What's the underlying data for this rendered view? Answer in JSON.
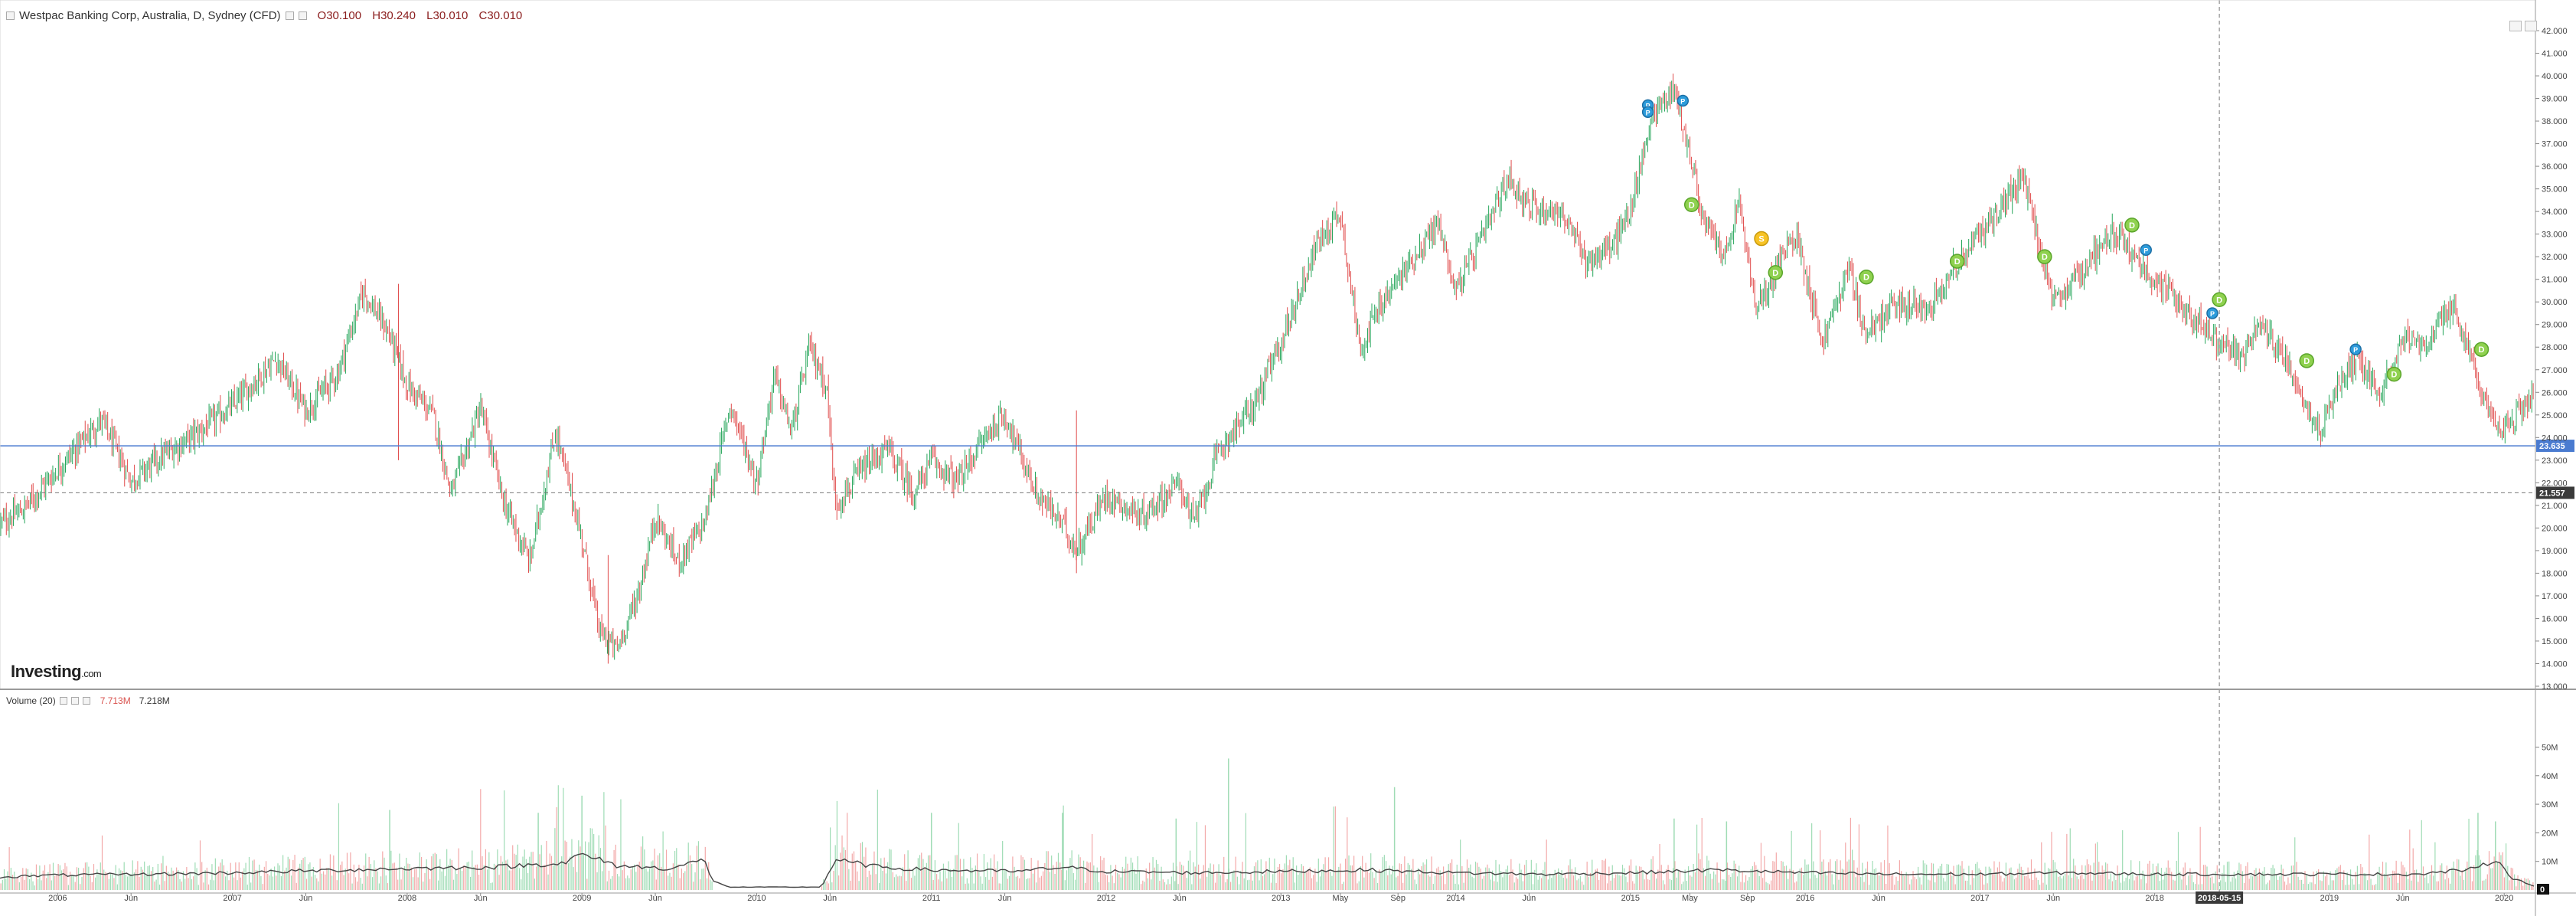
{
  "header": {
    "title": "Westpac Banking Corp, Australia, D, Sydney (CFD)",
    "open": "O30.100",
    "high": "H30.240",
    "low": "L30.010",
    "close": "C30.010"
  },
  "volume_header": {
    "label": "Volume (20)",
    "value1": "7.713M",
    "value2": "7.218M"
  },
  "logo": {
    "main": "Investing",
    "suffix": ".com"
  },
  "colors": {
    "up": "#26a65b",
    "down": "#e04b4b",
    "volume_up": "#9fdcb5",
    "volume_down": "#f3a9a9",
    "ma": "#444444",
    "price_line": "#4a7bd0",
    "crosshair_label": "#3a3a3a"
  },
  "chart_data": [
    {
      "type": "candlestick",
      "ylim": [
        13.0,
        42.0
      ],
      "yticks": [
        "13.000",
        "14.000",
        "15.000",
        "16.000",
        "17.000",
        "18.000",
        "19.000",
        "20.000",
        "21.000",
        "22.000",
        "23.000",
        "24.000",
        "25.000",
        "26.000",
        "27.000",
        "28.000",
        "29.000",
        "30.000",
        "31.000",
        "32.000",
        "33.000",
        "34.000",
        "35.000",
        "36.000",
        "37.000",
        "38.000",
        "39.000",
        "40.000",
        "41.000",
        "42.000"
      ],
      "xticks": [
        {
          "label": "2006",
          "t": 2006.0
        },
        {
          "label": "Jun",
          "t": 2006.42
        },
        {
          "label": "2007",
          "t": 2007.0
        },
        {
          "label": "Jun",
          "t": 2007.42
        },
        {
          "label": "2008",
          "t": 2008.0
        },
        {
          "label": "Jun",
          "t": 2008.42
        },
        {
          "label": "2009",
          "t": 2009.0
        },
        {
          "label": "Jun",
          "t": 2009.42
        },
        {
          "label": "2010",
          "t": 2010.0
        },
        {
          "label": "Jun",
          "t": 2010.42
        },
        {
          "label": "2011",
          "t": 2011.0
        },
        {
          "label": "Jun",
          "t": 2011.42
        },
        {
          "label": "2012",
          "t": 2012.0
        },
        {
          "label": "Jun",
          "t": 2012.42
        },
        {
          "label": "2013",
          "t": 2013.0
        },
        {
          "label": "May",
          "t": 2013.34
        },
        {
          "label": "Sep",
          "t": 2013.67
        },
        {
          "label": "2014",
          "t": 2014.0
        },
        {
          "label": "Jun",
          "t": 2014.42
        },
        {
          "label": "2015",
          "t": 2015.0
        },
        {
          "label": "May",
          "t": 2015.34
        },
        {
          "label": "Sep",
          "t": 2015.67
        },
        {
          "label": "2016",
          "t": 2016.0
        },
        {
          "label": "Jun",
          "t": 2016.42
        },
        {
          "label": "2017",
          "t": 2017.0
        },
        {
          "label": "Jun",
          "t": 2017.42
        },
        {
          "label": "2018",
          "t": 2018.0
        },
        {
          "label": "2018-05-15",
          "t": 2018.37,
          "highlight": true
        },
        {
          "label": "2019",
          "t": 2019.0
        },
        {
          "label": "Jun",
          "t": 2019.42
        },
        {
          "label": "2020",
          "t": 2020.0
        }
      ],
      "x_start": 2005.67,
      "x_end": 2020.17,
      "price_path": [
        [
          2005.67,
          20.2
        ],
        [
          2005.8,
          20.8
        ],
        [
          2006.0,
          22.6
        ],
        [
          2006.25,
          24.8
        ],
        [
          2006.42,
          22.1
        ],
        [
          2006.6,
          23.2
        ],
        [
          2006.8,
          24.2
        ],
        [
          2007.0,
          25.4
        ],
        [
          2007.25,
          27.5
        ],
        [
          2007.42,
          25.2
        ],
        [
          2007.6,
          26.8
        ],
        [
          2007.75,
          30.5
        ],
        [
          2007.9,
          28.5
        ],
        [
          2008.0,
          26.3
        ],
        [
          2008.15,
          25.0
        ],
        [
          2008.25,
          21.5
        ],
        [
          2008.42,
          25.3
        ],
        [
          2008.55,
          21.2
        ],
        [
          2008.7,
          18.5
        ],
        [
          2008.85,
          24.3
        ],
        [
          2009.0,
          19.5
        ],
        [
          2009.1,
          15.4
        ],
        [
          2009.2,
          14.6
        ],
        [
          2009.33,
          17.3
        ],
        [
          2009.42,
          20.5
        ],
        [
          2009.55,
          18.5
        ],
        [
          2009.7,
          20.2
        ],
        [
          2009.85,
          25.5
        ],
        [
          2010.0,
          22.0
        ],
        [
          2010.1,
          26.8
        ],
        [
          2010.2,
          24.2
        ],
        [
          2010.3,
          28.0
        ],
        [
          2010.4,
          26.3
        ],
        [
          2010.45,
          21.0
        ],
        [
          2010.6,
          22.5
        ],
        [
          2010.75,
          23.5
        ],
        [
          2010.9,
          21.5
        ],
        [
          2011.0,
          23.0
        ],
        [
          2011.15,
          22.0
        ],
        [
          2011.3,
          24.0
        ],
        [
          2011.42,
          25.0
        ],
        [
          2011.6,
          21.5
        ],
        [
          2011.75,
          20.2
        ],
        [
          2011.83,
          19.0
        ],
        [
          2012.0,
          21.5
        ],
        [
          2012.2,
          20.5
        ],
        [
          2012.42,
          22.0
        ],
        [
          2012.5,
          20.2
        ],
        [
          2012.65,
          23.5
        ],
        [
          2012.85,
          25.5
        ],
        [
          2013.0,
          28.2
        ],
        [
          2013.2,
          32.5
        ],
        [
          2013.34,
          34.0
        ],
        [
          2013.45,
          28.0
        ],
        [
          2013.55,
          29.5
        ],
        [
          2013.67,
          31.0
        ],
        [
          2013.9,
          33.5
        ],
        [
          2014.0,
          30.5
        ],
        [
          2014.15,
          32.8
        ],
        [
          2014.3,
          35.5
        ],
        [
          2014.42,
          34.2
        ],
        [
          2014.6,
          34.0
        ],
        [
          2014.75,
          31.8
        ],
        [
          2014.9,
          32.5
        ],
        [
          2015.0,
          34.0
        ],
        [
          2015.12,
          38.2
        ],
        [
          2015.25,
          39.5
        ],
        [
          2015.34,
          36.5
        ],
        [
          2015.42,
          33.5
        ],
        [
          2015.55,
          32.0
        ],
        [
          2015.62,
          34.5
        ],
        [
          2015.72,
          29.5
        ],
        [
          2015.85,
          31.8
        ],
        [
          2015.95,
          33.0
        ],
        [
          2016.1,
          28.2
        ],
        [
          2016.25,
          31.5
        ],
        [
          2016.35,
          28.5
        ],
        [
          2016.5,
          29.8
        ],
        [
          2016.7,
          29.8
        ],
        [
          2016.85,
          31.5
        ],
        [
          2017.0,
          33.0
        ],
        [
          2017.15,
          34.5
        ],
        [
          2017.25,
          35.5
        ],
        [
          2017.35,
          32.2
        ],
        [
          2017.42,
          29.8
        ],
        [
          2017.6,
          31.5
        ],
        [
          2017.75,
          33.2
        ],
        [
          2017.9,
          31.8
        ],
        [
          2018.0,
          31.0
        ],
        [
          2018.2,
          29.5
        ],
        [
          2018.37,
          28.2
        ],
        [
          2018.5,
          27.5
        ],
        [
          2018.6,
          29.0
        ],
        [
          2018.75,
          27.5
        ],
        [
          2018.85,
          25.8
        ],
        [
          2018.95,
          24.2
        ],
        [
          2019.0,
          25.5
        ],
        [
          2019.15,
          27.5
        ],
        [
          2019.3,
          26.0
        ],
        [
          2019.42,
          28.5
        ],
        [
          2019.55,
          28.0
        ],
        [
          2019.7,
          29.8
        ],
        [
          2019.8,
          28.0
        ],
        [
          2019.88,
          25.5
        ],
        [
          2019.95,
          24.3
        ],
        [
          2020.05,
          24.8
        ],
        [
          2020.17,
          26.0
        ]
      ],
      "current_price": 23.635,
      "current_price_label": "23.635",
      "crosshair_price": 21.557,
      "crosshair_label": "21.557",
      "crosshair_t": 2018.37,
      "events": [
        {
          "t": 2015.1,
          "price": 38.7,
          "label": "P",
          "kind": "split"
        },
        {
          "t": 2015.1,
          "price": 38.4,
          "label": "P",
          "kind": "split"
        },
        {
          "t": 2015.3,
          "price": 38.9,
          "label": "P",
          "kind": "split"
        },
        {
          "t": 2015.35,
          "price": 34.3,
          "label": "D",
          "kind": "dividend"
        },
        {
          "t": 2015.75,
          "price": 32.8,
          "label": "S",
          "kind": "other"
        },
        {
          "t": 2015.83,
          "price": 31.3,
          "label": "D",
          "kind": "dividend"
        },
        {
          "t": 2016.35,
          "price": 31.1,
          "label": "D",
          "kind": "dividend"
        },
        {
          "t": 2016.87,
          "price": 31.8,
          "label": "D",
          "kind": "dividend"
        },
        {
          "t": 2017.37,
          "price": 32.0,
          "label": "D",
          "kind": "dividend"
        },
        {
          "t": 2017.87,
          "price": 33.4,
          "label": "D",
          "kind": "dividend"
        },
        {
          "t": 2017.95,
          "price": 32.3,
          "label": "P",
          "kind": "split"
        },
        {
          "t": 2018.33,
          "price": 29.5,
          "label": "P",
          "kind": "split"
        },
        {
          "t": 2018.37,
          "price": 30.1,
          "label": "D",
          "kind": "dividend"
        },
        {
          "t": 2018.87,
          "price": 27.4,
          "label": "D",
          "kind": "dividend"
        },
        {
          "t": 2019.15,
          "price": 27.9,
          "label": "P",
          "kind": "split"
        },
        {
          "t": 2019.37,
          "price": 26.8,
          "label": "D",
          "kind": "dividend"
        },
        {
          "t": 2019.87,
          "price": 27.9,
          "label": "D",
          "kind": "dividend"
        }
      ]
    },
    {
      "type": "bar",
      "title": "Volume (20)",
      "ylim": [
        0,
        52
      ],
      "yticks": [
        "10M",
        "20M",
        "30M",
        "40M",
        "50M"
      ],
      "ytick_values": [
        10,
        20,
        30,
        40,
        50
      ],
      "zero_label": "0",
      "gap_start": 2009.75,
      "gap_end": 2010.37,
      "ma_path": [
        [
          2005.67,
          4.5
        ],
        [
          2006.0,
          5.2
        ],
        [
          2006.5,
          5.5
        ],
        [
          2007.0,
          6.0
        ],
        [
          2007.5,
          6.8
        ],
        [
          2008.0,
          7.5
        ],
        [
          2008.5,
          8.0
        ],
        [
          2008.9,
          9.5
        ],
        [
          2009.0,
          12.5
        ],
        [
          2009.2,
          8.5
        ],
        [
          2009.5,
          7.5
        ],
        [
          2009.7,
          10.5
        ],
        [
          2009.75,
          3.0
        ],
        [
          2009.85,
          1.0
        ],
        [
          2010.37,
          1.0
        ],
        [
          2010.45,
          10.5
        ],
        [
          2010.7,
          8.0
        ],
        [
          2011.0,
          7.0
        ],
        [
          2011.5,
          6.5
        ],
        [
          2011.75,
          8.0
        ],
        [
          2012.0,
          6.5
        ],
        [
          2012.5,
          6.0
        ],
        [
          2013.0,
          6.5
        ],
        [
          2013.5,
          7.0
        ],
        [
          2014.0,
          6.0
        ],
        [
          2014.5,
          5.5
        ],
        [
          2015.0,
          6.0
        ],
        [
          2015.5,
          7.0
        ],
        [
          2016.0,
          6.0
        ],
        [
          2016.5,
          5.5
        ],
        [
          2017.0,
          5.5
        ],
        [
          2017.5,
          6.0
        ],
        [
          2018.0,
          5.5
        ],
        [
          2018.5,
          5.5
        ],
        [
          2019.0,
          5.5
        ],
        [
          2019.5,
          5.5
        ],
        [
          2019.85,
          7.5
        ],
        [
          2019.95,
          11.0
        ],
        [
          2020.05,
          4.0
        ],
        [
          2020.17,
          1.5
        ]
      ],
      "spikes": [
        {
          "t": 2007.9,
          "v": 28
        },
        {
          "t": 2008.75,
          "v": 27
        },
        {
          "t": 2009.0,
          "v": 33
        },
        {
          "t": 2011.0,
          "v": 27
        },
        {
          "t": 2011.75,
          "v": 27
        },
        {
          "t": 2012.4,
          "v": 25
        },
        {
          "t": 2012.7,
          "v": 46
        },
        {
          "t": 2013.65,
          "v": 36
        },
        {
          "t": 2015.25,
          "v": 25
        },
        {
          "t": 2015.55,
          "v": 24
        },
        {
          "t": 2019.85,
          "v": 27
        },
        {
          "t": 2019.95,
          "v": 24
        }
      ]
    }
  ]
}
